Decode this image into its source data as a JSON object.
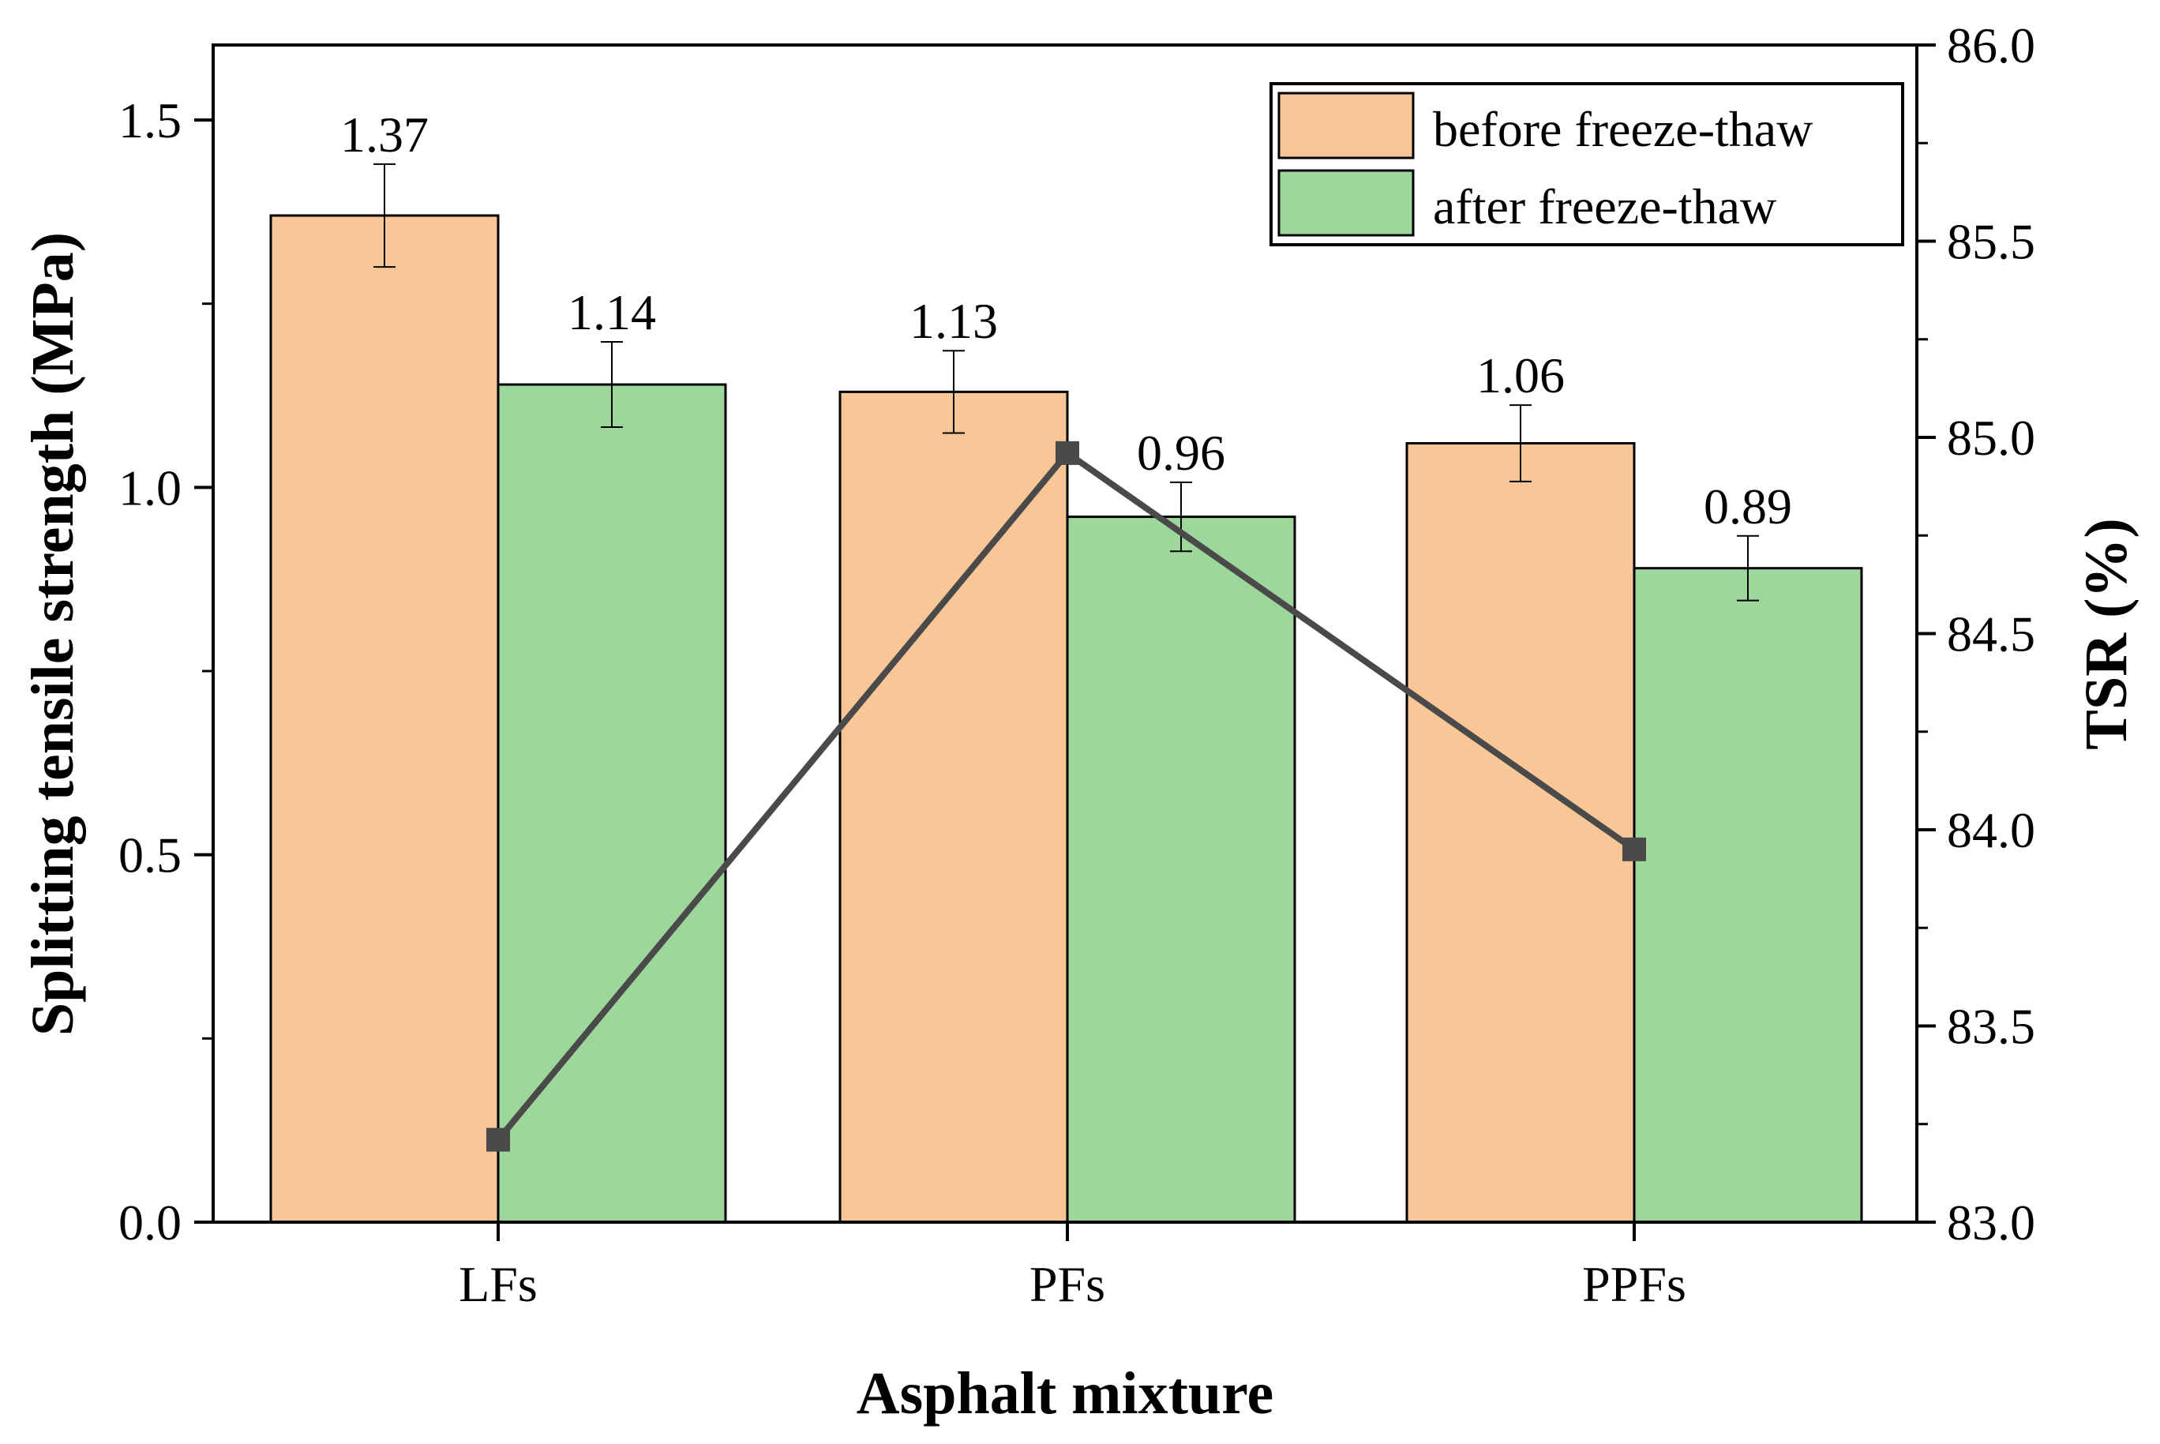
{
  "chart_data": {
    "type": "bar",
    "title": "",
    "xlabel": "Asphalt mixture",
    "ylabel": "Splitting tensile strength (MPa)",
    "y2label": "TSR (%)",
    "categories": [
      "LFs",
      "PFs",
      "PPFs"
    ],
    "ylim": [
      0,
      1.6
    ],
    "y2lim": [
      83.0,
      86.0
    ],
    "yticks": [
      "0.0",
      "0.5",
      "1.0",
      "1.5"
    ],
    "y2ticks": [
      "83.0",
      "83.5",
      "84.0",
      "84.5",
      "85.0",
      "85.5",
      "86.0"
    ],
    "series": [
      {
        "name": "before freeze-thaw",
        "color": "#F9C697",
        "values": [
          1.37,
          1.13,
          1.06
        ],
        "labels": [
          "1.37",
          "1.13",
          "1.06"
        ],
        "errors": [
          0.07,
          0.056,
          0.052
        ]
      },
      {
        "name": "after freeze-thaw",
        "color": "#9DD79C",
        "values": [
          1.14,
          0.96,
          0.89
        ],
        "labels": [
          "1.14",
          "0.96",
          "0.89"
        ],
        "errors": [
          0.058,
          0.047,
          0.044
        ]
      }
    ],
    "line_series": {
      "name": "TSR",
      "axis": "right",
      "color": "#4A4A4A",
      "values": [
        83.21,
        84.96,
        83.95
      ]
    },
    "legend_position": "top-right",
    "grid": false
  }
}
